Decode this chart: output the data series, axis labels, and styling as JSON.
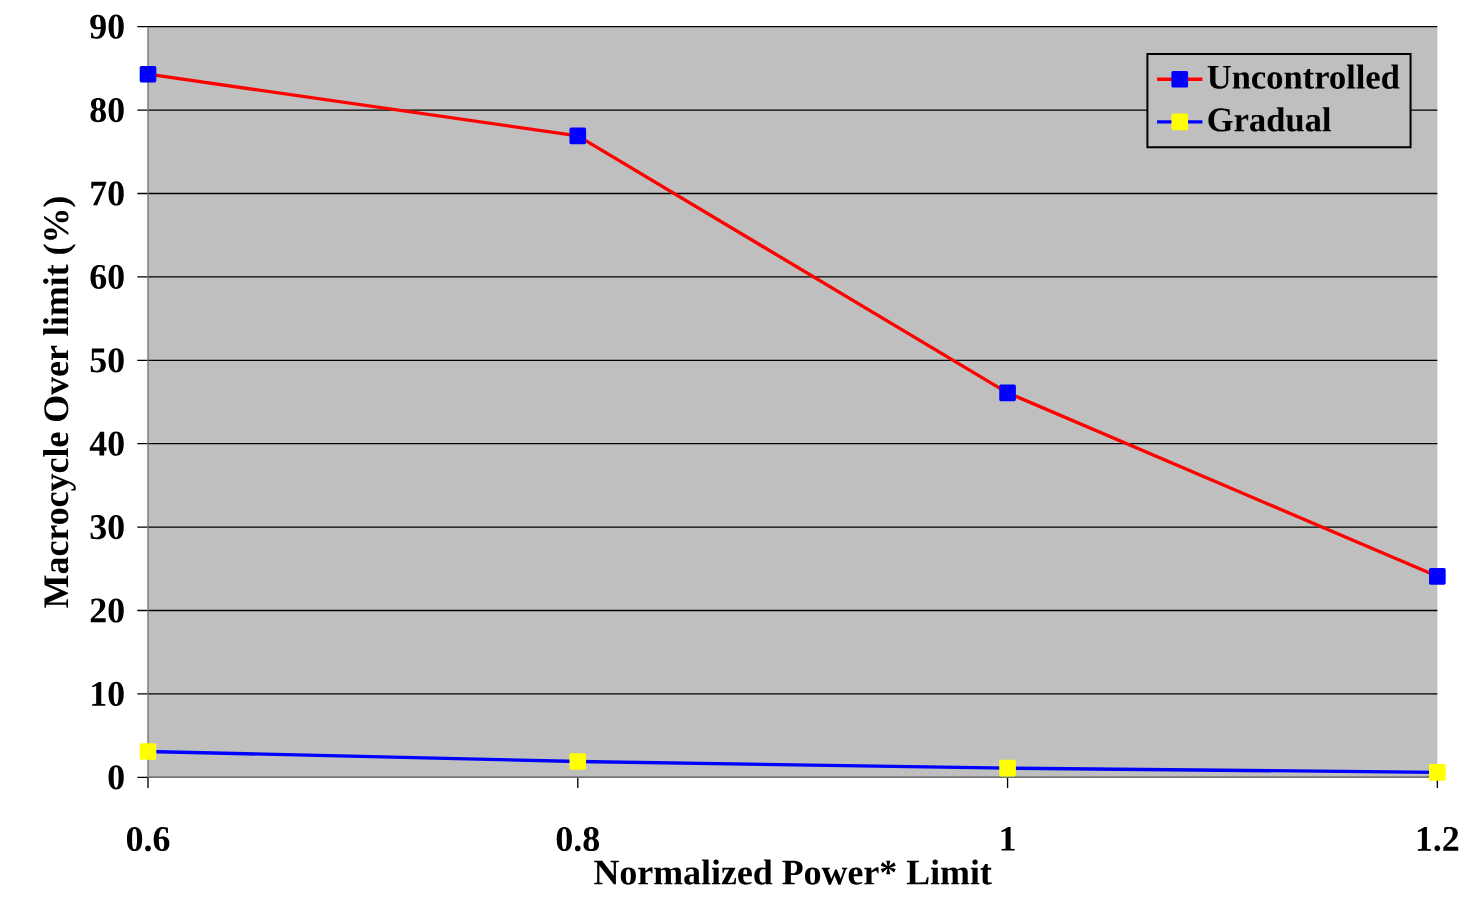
{
  "chart_data": {
    "type": "line",
    "xlabel": "Normalized Power*  Limit",
    "ylabel": "Macrocycle Over limit (%)",
    "x": [
      0.6,
      0.8,
      1,
      1.2
    ],
    "series": [
      {
        "name": "Uncontrolled",
        "color": "#ff0000",
        "values": [
          84.3,
          76.9,
          46.1,
          24.1
        ]
      },
      {
        "name": "Gradual",
        "color": "#0000ff",
        "values": [
          3.1,
          1.9,
          1.1,
          0.6
        ]
      }
    ],
    "xlim": [
      0.6,
      1.2
    ],
    "ylim": [
      0,
      90
    ],
    "xticks": [
      0.6,
      0.8,
      1,
      1.2
    ],
    "yticks": [
      0,
      10,
      20,
      30,
      40,
      50,
      60,
      70,
      80,
      90
    ],
    "grid": "y",
    "legend": "top right",
    "marker": "square",
    "line_style": "solid"
  }
}
